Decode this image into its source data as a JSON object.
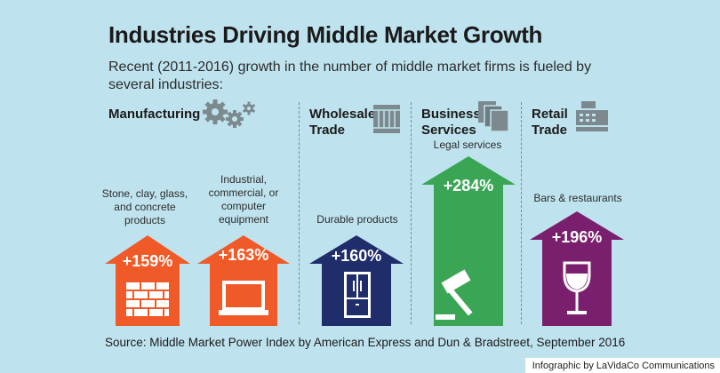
{
  "title": "Industries Driving Middle Market Growth",
  "subtitle": "Recent (2011-2016) growth in the number of middle market firms is fueled by several industries:",
  "categories": {
    "manufacturing": "Manufacturing",
    "wholesale": [
      "Wholesale",
      "Trade"
    ],
    "business": [
      "Business",
      "Services"
    ],
    "retail": [
      "Retail",
      "Trade"
    ]
  },
  "items": [
    {
      "label": [
        "Stone, clay, glass,",
        "and concrete",
        "products"
      ],
      "pct": "+159%",
      "color": "#f05a28",
      "icon": "brick-wall-icon"
    },
    {
      "label": [
        "Industrial,",
        "commercial, or",
        "computer",
        "equipment"
      ],
      "pct": "+163%",
      "color": "#f05a28",
      "icon": "laptop-icon"
    },
    {
      "label": [
        "Durable products"
      ],
      "pct": "+160%",
      "color": "#1f2d6b",
      "icon": "refrigerator-icon"
    },
    {
      "label": [
        "Legal services"
      ],
      "pct": "+284%",
      "color": "#3aa655",
      "icon": "gavel-icon"
    },
    {
      "label": [
        "Bars & restaurants"
      ],
      "pct": "+196%",
      "color": "#7a1f6e",
      "icon": "wine-glass-icon"
    }
  ],
  "source": "Source: Middle Market Power Index by American Express and Dun & Bradstreet, September 2016",
  "credit": "Infographic by LaVidaCo Communications"
}
